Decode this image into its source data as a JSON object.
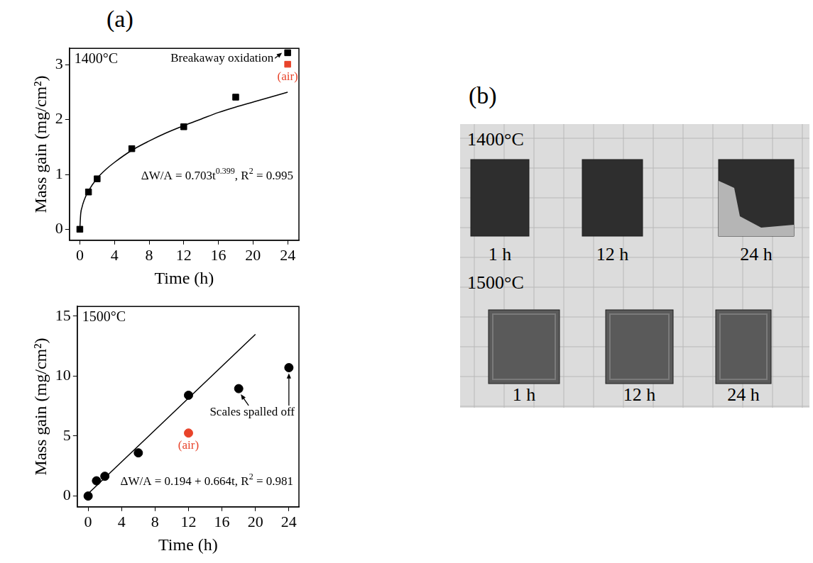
{
  "panel_labels": [
    "(a)",
    "(b)"
  ],
  "chart_data": [
    {
      "type": "scatter",
      "title": "1400°C",
      "xlabel": "Time (h)",
      "ylabel": "Mass gain (mg/cm²)",
      "xlim": [
        -1.2,
        25.3
      ],
      "xticks": [
        0,
        4,
        8,
        12,
        16,
        20,
        24
      ],
      "ylim": [
        -0.2,
        3.3
      ],
      "yticks": [
        0,
        1,
        2,
        3
      ],
      "grid": false,
      "note": "Breakaway oxidation",
      "series": [
        {
          "type": "scatter",
          "x": [
            0,
            1,
            2,
            6,
            12,
            18,
            24
          ],
          "values": [
            0,
            0.68,
            0.92,
            1.47,
            1.87,
            2.41,
            3.22
          ],
          "color": "#000000",
          "marker": "square",
          "line_style": "none"
        },
        {
          "type": "scatter",
          "x": [
            24
          ],
          "values": [
            3.01
          ],
          "color": "#e8432a",
          "marker": "square",
          "line_style": "none",
          "label": "(air)"
        },
        {
          "type": "line",
          "x": [
            0,
            0.1,
            0.25,
            0.5,
            1,
            2,
            3,
            4,
            6,
            8,
            10,
            12,
            14,
            16,
            18,
            20,
            22,
            24
          ],
          "values": [
            0,
            0.28,
            0.4,
            0.53,
            0.7,
            0.93,
            1.09,
            1.22,
            1.44,
            1.61,
            1.76,
            1.89,
            2.01,
            2.13,
            2.23,
            2.32,
            2.41,
            2.5
          ],
          "color": "#000000",
          "marker": "none",
          "line_style": "solid",
          "equation": [
            {
              "text": "ΔW/A = 0.703t"
            },
            {
              "text": "0.399",
              "sup": true
            },
            {
              "text": ", R"
            },
            {
              "text": "2",
              "sup": true
            },
            {
              "text": " = 0.995"
            }
          ]
        }
      ]
    },
    {
      "type": "scatter",
      "title": "1500°C",
      "xlabel": "Time (h)",
      "ylabel": "Mass gain (mg/cm²)",
      "xlim": [
        -1.3,
        25.2
      ],
      "xticks": [
        0,
        4,
        8,
        12,
        16,
        20,
        24
      ],
      "ylim": [
        -0.9,
        15.8
      ],
      "yticks": [
        0,
        5,
        10,
        15
      ],
      "grid": false,
      "note": "Scales spalled off",
      "series": [
        {
          "type": "scatter",
          "x": [
            0,
            1,
            2,
            6,
            12,
            18,
            24
          ],
          "values": [
            0,
            1.27,
            1.65,
            3.6,
            8.4,
            8.95,
            10.7
          ],
          "color": "#000000",
          "marker": "circle",
          "line_style": "none"
        },
        {
          "type": "scatter",
          "x": [
            12
          ],
          "values": [
            5.25
          ],
          "color": "#e8432a",
          "marker": "circle",
          "line_style": "none",
          "label": "(air)"
        },
        {
          "type": "line",
          "x": [
            0,
            20
          ],
          "values": [
            0.194,
            13.474
          ],
          "color": "#000000",
          "marker": "none",
          "line_style": "solid",
          "equation": [
            {
              "text": "ΔW/A = 0.194 + 0.664t, R"
            },
            {
              "text": "2",
              "sup": true
            },
            {
              "text": " = 0.981"
            }
          ]
        }
      ]
    }
  ],
  "photo": {
    "rows": [
      {
        "label": "1400°C",
        "samples": [
          "1 h",
          "12 h",
          "24 h"
        ]
      },
      {
        "label": "1500°C",
        "samples": [
          "1 h",
          "12 h",
          "24 h"
        ]
      }
    ]
  }
}
